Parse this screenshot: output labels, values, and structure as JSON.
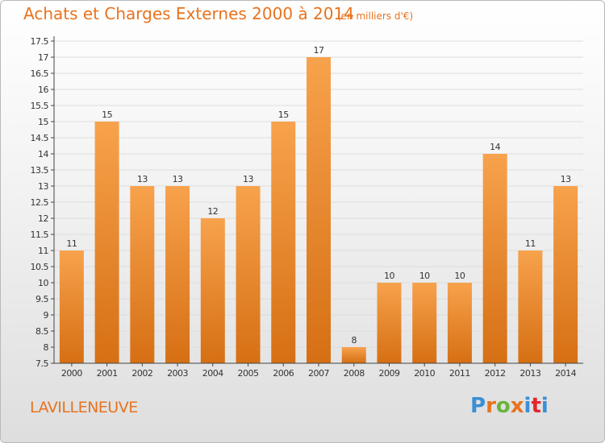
{
  "header": {
    "title": "Achats et Charges Externes 2000 à 2014",
    "subtitle": "(en milliers d'€)"
  },
  "footer": {
    "commune": "LAVILLENEUVE",
    "logo": {
      "text": "Proxiti",
      "letter_colors": [
        "#3a8fd6",
        "#e8731e",
        "#6bb43f",
        "#e8731e",
        "#3a8fd6",
        "#e3262e",
        "#3a8fd6"
      ]
    }
  },
  "colors": {
    "bar_light": "#f7a24c",
    "bar_dark": "#d66f14",
    "axis": "#444444",
    "gridline": "#dddddd",
    "text": "#333333",
    "accent": "#e8731e"
  },
  "chart_data": {
    "type": "bar",
    "categories": [
      "2000",
      "2001",
      "2002",
      "2003",
      "2004",
      "2005",
      "2006",
      "2007",
      "2008",
      "2009",
      "2010",
      "2011",
      "2012",
      "2013",
      "2014"
    ],
    "values": [
      11,
      15,
      13,
      13,
      12,
      13,
      15,
      17,
      8,
      10,
      10,
      10,
      14,
      11,
      13
    ],
    "data_labels": [
      "11",
      "15",
      "13",
      "13",
      "12",
      "13",
      "15",
      "17",
      "8",
      "10",
      "10",
      "10",
      "14",
      "11",
      "13"
    ],
    "y_ticks": [
      7.5,
      8,
      8.5,
      9,
      9.5,
      10,
      10.5,
      11,
      11.5,
      12,
      12.5,
      13,
      13.5,
      14,
      14.5,
      15,
      15.5,
      16,
      16.5,
      17,
      17.5
    ],
    "y_tick_labels": [
      "7.5",
      "8",
      "8.5",
      "9",
      "9.5",
      "10",
      "10.5",
      "11",
      "11.5",
      "12",
      "12.5",
      "13",
      "13.5",
      "14",
      "14.5",
      "15",
      "15.5",
      "16",
      "16.5",
      "17",
      "17.5"
    ],
    "ylim": [
      7.5,
      17.5
    ],
    "grid": true,
    "title": "Achats et Charges Externes 2000 à 2014",
    "xlabel": "",
    "ylabel": ""
  }
}
